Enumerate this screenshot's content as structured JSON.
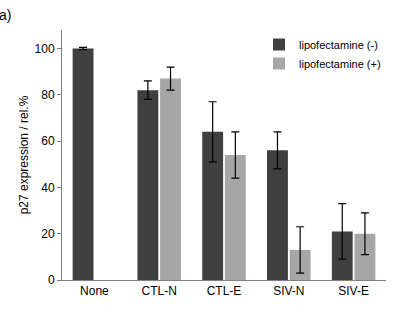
{
  "chart_data": {
    "type": "bar",
    "annotations": [
      "a)"
    ],
    "y_label": "p27 expression / rel.%",
    "categories": [
      "None",
      "CTL-N",
      "CTL-E",
      "SIV-N",
      "SIV-E"
    ],
    "series": [
      {
        "name": "lipofectamine (-)",
        "color": "#3f3f3f",
        "values": [
          100,
          82,
          64,
          56,
          21
        ],
        "errors": [
          0.5,
          4,
          13,
          8,
          12
        ]
      },
      {
        "name": "lipofectamine (+)",
        "color": "#a6a6a6",
        "values": [
          null,
          87,
          54,
          13,
          20
        ],
        "errors": [
          null,
          5,
          10,
          10,
          9
        ]
      }
    ],
    "ylim": [
      0,
      108
    ],
    "yticks": [
      0,
      20,
      40,
      60,
      80,
      100
    ],
    "grid": false,
    "legend": "top right"
  }
}
